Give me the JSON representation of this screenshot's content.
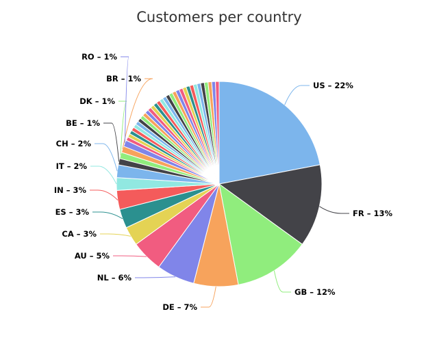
{
  "chart_data": {
    "type": "pie",
    "title": "Customers per country",
    "start_angle_deg": 0,
    "legend": "none",
    "slices": [
      {
        "label": "US",
        "value": 22,
        "color": "#7cb5ec",
        "display": "US – 22%"
      },
      {
        "label": "FR",
        "value": 13,
        "color": "#434348",
        "display": "FR – 13%"
      },
      {
        "label": "GB",
        "value": 12,
        "color": "#90ed7d",
        "display": "GB – 12%"
      },
      {
        "label": "DE",
        "value": 7,
        "color": "#f7a35c",
        "display": "DE – 7%"
      },
      {
        "label": "NL",
        "value": 6,
        "color": "#8085e9",
        "display": "NL – 6%"
      },
      {
        "label": "AU",
        "value": 5,
        "color": "#f15c80",
        "display": "AU – 5%"
      },
      {
        "label": "CA",
        "value": 3,
        "color": "#e4d354",
        "display": "CA – 3%"
      },
      {
        "label": "ES",
        "value": 3,
        "color": "#2b908f",
        "display": "ES – 3%"
      },
      {
        "label": "IN",
        "value": 3,
        "color": "#f45b5b",
        "display": "IN – 3%"
      },
      {
        "label": "IT",
        "value": 2,
        "color": "#91e8e1",
        "display": "IT – 2%"
      },
      {
        "label": "CH",
        "value": 2,
        "color": "#7cb5ec",
        "display": "CH – 2%"
      },
      {
        "label": "BE",
        "value": 1,
        "color": "#434348",
        "display": "BE – 1%"
      },
      {
        "label": "DK",
        "value": 1,
        "color": "#90ed7d",
        "display": "DK – 1%"
      },
      {
        "label": "BR",
        "value": 1,
        "color": "#f7a35c",
        "display": "BR – 1%"
      },
      {
        "label": "RO",
        "value": 1,
        "color": "#8085e9",
        "display": "RO – 1%"
      }
    ],
    "other_small_slices": {
      "count": 31,
      "total_value": 18,
      "colors": [
        "#f15c80",
        "#e4d354",
        "#2b908f",
        "#f45b5b",
        "#91e8e1",
        "#7cb5ec",
        "#434348",
        "#90ed7d",
        "#f7a35c",
        "#8085e9"
      ]
    }
  }
}
